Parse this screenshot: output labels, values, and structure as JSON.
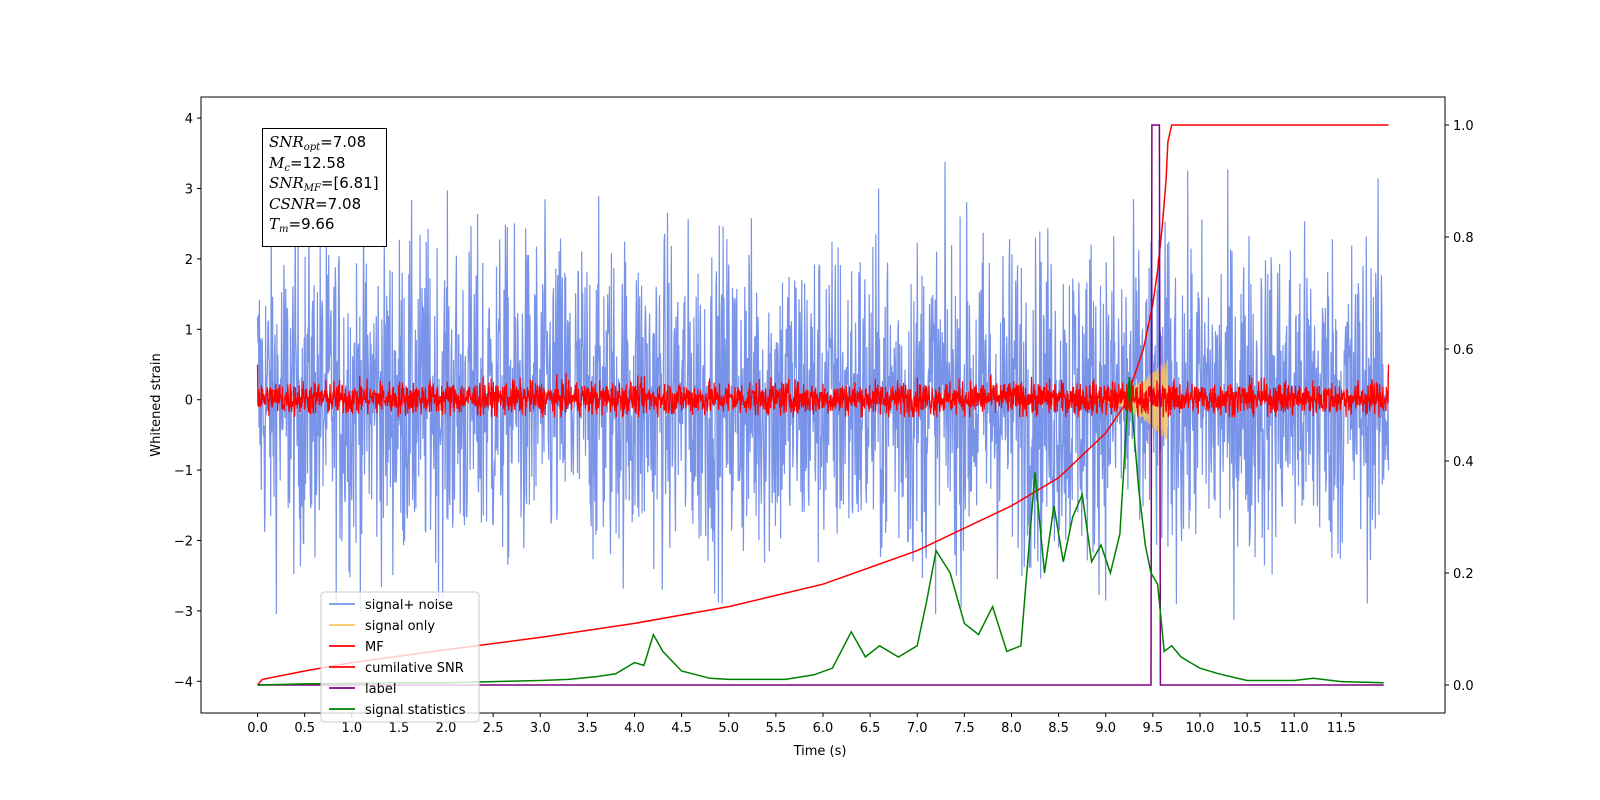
{
  "chart_data": {
    "type": "line",
    "xlabel": "Time (s)",
    "ylabel": "Whitened strain",
    "xlim": [
      -0.6,
      12.6
    ],
    "ylim": [
      -4.45,
      4.3
    ],
    "ylim_right": [
      -0.05,
      1.05
    ],
    "x_ticks": [
      "0.0",
      "0.5",
      "1.0",
      "1.5",
      "2.0",
      "2.5",
      "3.0",
      "3.5",
      "4.0",
      "4.5",
      "5.0",
      "5.5",
      "6.0",
      "6.5",
      "7.0",
      "7.5",
      "8.0",
      "8.5",
      "9.0",
      "9.5",
      "10.0",
      "10.5",
      "11.0",
      "11.5"
    ],
    "y_ticks": [
      "4",
      "3",
      "2",
      "1",
      "0",
      "−1",
      "−2",
      "−3",
      "−4"
    ],
    "y_ticks_right": [
      "1.0",
      "0.8",
      "0.6",
      "0.4",
      "0.2",
      "0.0"
    ],
    "legend_placement": "lower-left",
    "annotation": {
      "snr_opt": "=7.08",
      "mc": "=12.58",
      "snr_mf": "=[6.81]",
      "csnr": "=7.08",
      "tm": "=9.66"
    },
    "series": [
      {
        "name": "signal+ noise",
        "color": "#7893e8",
        "axis": "left",
        "kind": "noise",
        "amplitude": 3.9,
        "x_range": [
          0,
          12
        ]
      },
      {
        "name": "signal only",
        "color": "#f5c463",
        "axis": "left",
        "kind": "chirp",
        "peak_time": 9.66,
        "peak_amplitude": 0.6
      },
      {
        "name": "MF",
        "color": "#ff0000",
        "axis": "left",
        "kind": "noise",
        "amplitude": 0.5,
        "x_range": [
          0,
          12
        ]
      },
      {
        "name": "cumilative SNR",
        "color": "#ff0000",
        "axis": "right",
        "x": [
          0.0,
          0.05,
          0.5,
          1.0,
          2.0,
          3.0,
          4.0,
          5.0,
          6.0,
          7.0,
          8.0,
          8.5,
          9.0,
          9.2,
          9.4,
          9.5,
          9.55,
          9.6,
          9.64,
          9.66,
          9.7,
          12.0
        ],
        "y": [
          0.0,
          0.01,
          0.025,
          0.04,
          0.063,
          0.085,
          0.11,
          0.14,
          0.18,
          0.24,
          0.32,
          0.37,
          0.45,
          0.5,
          0.6,
          0.68,
          0.74,
          0.82,
          0.9,
          0.97,
          1.0,
          1.0
        ]
      },
      {
        "name": "label",
        "color": "#800080",
        "axis": "right",
        "x": [
          0.0,
          9.48,
          9.49,
          9.57,
          9.58,
          11.95
        ],
        "y": [
          0,
          0,
          1,
          1,
          0,
          0
        ]
      },
      {
        "name": "signal statistics",
        "color": "#008000",
        "axis": "right",
        "x": [
          0.0,
          0.5,
          1.0,
          1.5,
          2.0,
          2.5,
          3.0,
          3.3,
          3.6,
          3.8,
          4.0,
          4.1,
          4.2,
          4.3,
          4.5,
          4.8,
          5.0,
          5.3,
          5.6,
          5.9,
          6.1,
          6.3,
          6.45,
          6.6,
          6.8,
          7.0,
          7.1,
          7.2,
          7.35,
          7.5,
          7.65,
          7.8,
          7.95,
          8.1,
          8.25,
          8.35,
          8.45,
          8.55,
          8.65,
          8.75,
          8.85,
          8.95,
          9.05,
          9.15,
          9.25,
          9.35,
          9.42,
          9.48,
          9.55,
          9.62,
          9.7,
          9.8,
          9.9,
          10.0,
          10.2,
          10.5,
          11.0,
          11.2,
          11.5,
          11.95
        ],
        "y": [
          0.0,
          0.002,
          0.003,
          0.004,
          0.004,
          0.006,
          0.008,
          0.01,
          0.015,
          0.02,
          0.04,
          0.035,
          0.09,
          0.06,
          0.025,
          0.012,
          0.01,
          0.01,
          0.01,
          0.018,
          0.03,
          0.095,
          0.05,
          0.07,
          0.05,
          0.07,
          0.15,
          0.24,
          0.2,
          0.11,
          0.09,
          0.14,
          0.06,
          0.07,
          0.38,
          0.2,
          0.32,
          0.22,
          0.3,
          0.34,
          0.22,
          0.25,
          0.2,
          0.27,
          0.55,
          0.35,
          0.25,
          0.2,
          0.18,
          0.06,
          0.07,
          0.05,
          0.04,
          0.03,
          0.02,
          0.008,
          0.008,
          0.012,
          0.006,
          0.004
        ]
      }
    ]
  }
}
